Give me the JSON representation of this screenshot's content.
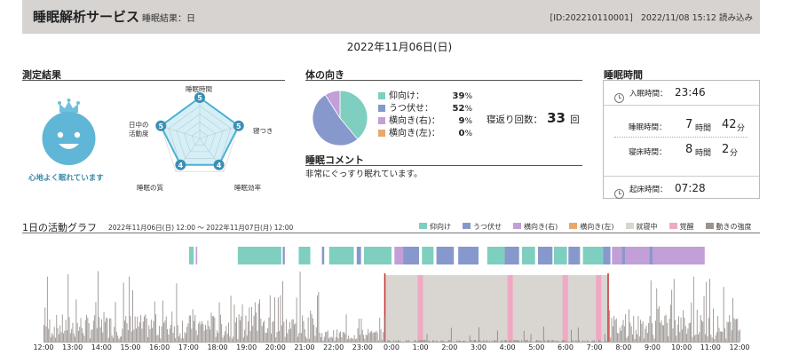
{
  "header": {
    "title": "睡眠解析サービス",
    "result_label": "睡眠結果：日",
    "id_text": "[ID:202210110001]",
    "loaded_text": "2022/11/08 15:12 読み込み"
  },
  "date_title": "2022年11月06日(日)",
  "measurement": {
    "title": "測定結果",
    "mascot_text": "心地よく眠れています",
    "radar": [
      {
        "label": "睡眠時間",
        "score": 5
      },
      {
        "label": "寝つき",
        "score": 5
      },
      {
        "label": "睡眠効率",
        "score": 4
      },
      {
        "label": "睡眠の質",
        "score": 4
      },
      {
        "label": "日中の活動度",
        "label_lines": [
          "日中の",
          "活動度"
        ],
        "score": 5
      }
    ],
    "radar_max": 5
  },
  "posture": {
    "title": "体の向き",
    "items": [
      {
        "label": "仰向け：",
        "value": 39,
        "color": "#7ecfbf"
      },
      {
        "label": "うつ伏せ：",
        "value": 52,
        "color": "#8798cc"
      },
      {
        "label": "横向き(右)：",
        "value": 9,
        "color": "#c39fd8"
      },
      {
        "label": "横向き(左)：",
        "value": 0,
        "color": "#e8a86a"
      }
    ],
    "pct_unit": "%",
    "roll_label": "寝返り回数：",
    "roll_value": "33",
    "roll_unit": "回"
  },
  "comment": {
    "title": "睡眠コメント",
    "text": "非常にぐっすり眠れています。"
  },
  "sleep_time": {
    "title": "睡眠時間",
    "bed_in_label": "入眠時間：",
    "bed_in_value": "23:46",
    "sleep_label": "睡眠時間：",
    "sleep_hours": "7",
    "sleep_h_unit": "時間",
    "sleep_minutes": "42",
    "sleep_m_unit": "分",
    "inbed_label": "寝床時間：",
    "inbed_hours": "8",
    "inbed_h_unit": "時間",
    "inbed_minutes": "2",
    "inbed_m_unit": "分",
    "wake_label": "起床時間：",
    "wake_value": "07:28"
  },
  "activity": {
    "title": "1日の活動グラフ",
    "range": "2022年11月06日(日) 12:00 ～ 2022年11月07日(月) 12:00",
    "legend": [
      {
        "label": "仰向け",
        "color": "#7ecfbf"
      },
      {
        "label": "うつ伏せ",
        "color": "#8798cc"
      },
      {
        "label": "横向き(右)",
        "color": "#c39fd8"
      },
      {
        "label": "横向き(左)",
        "color": "#e8a86a"
      },
      {
        "label": "就寝中",
        "color": "#d9d5d1"
      },
      {
        "label": "覚醒",
        "color": "#f0a8c4"
      },
      {
        "label": "動きの強度",
        "color": "#9a9491"
      }
    ],
    "ticks": [
      "12:00",
      "13:00",
      "14:00",
      "15:00",
      "16:00",
      "17:00",
      "18:00",
      "19:00",
      "20:00",
      "21:00",
      "22:00",
      "23:00",
      "0:00",
      "1:00",
      "2:00",
      "3:00",
      "4:00",
      "5:00",
      "6:00",
      "7:00",
      "8:00",
      "9:00",
      "10:00",
      "11:00",
      "12:00"
    ],
    "sleep_start_hour": 11.77,
    "sleep_end_hour": 19.47,
    "awake_hours": [
      12.9,
      16.0,
      17.9,
      19.05
    ],
    "posture_segments": [
      {
        "start": 5.02,
        "end": 5.18,
        "pos": 0
      },
      {
        "start": 5.25,
        "end": 5.3,
        "pos": 2
      },
      {
        "start": 6.7,
        "end": 8.2,
        "pos": 0
      },
      {
        "start": 8.25,
        "end": 8.32,
        "pos": 1
      },
      {
        "start": 8.8,
        "end": 9.2,
        "pos": 0
      },
      {
        "start": 9.6,
        "end": 9.68,
        "pos": 1
      },
      {
        "start": 9.85,
        "end": 10.7,
        "pos": 0
      },
      {
        "start": 10.8,
        "end": 10.95,
        "pos": 1
      },
      {
        "start": 11.05,
        "end": 12.0,
        "pos": 0
      },
      {
        "start": 12.1,
        "end": 12.4,
        "pos": 2
      },
      {
        "start": 12.4,
        "end": 12.95,
        "pos": 1
      },
      {
        "start": 13.05,
        "end": 13.45,
        "pos": 0
      },
      {
        "start": 13.55,
        "end": 14.15,
        "pos": 1
      },
      {
        "start": 14.3,
        "end": 15.0,
        "pos": 1
      },
      {
        "start": 15.3,
        "end": 15.9,
        "pos": 0
      },
      {
        "start": 15.9,
        "end": 16.4,
        "pos": 1
      },
      {
        "start": 16.5,
        "end": 16.95,
        "pos": 0
      },
      {
        "start": 17.05,
        "end": 17.55,
        "pos": 1
      },
      {
        "start": 17.6,
        "end": 18.05,
        "pos": 0
      },
      {
        "start": 18.1,
        "end": 18.5,
        "pos": 1
      },
      {
        "start": 18.6,
        "end": 19.3,
        "pos": 0
      },
      {
        "start": 19.3,
        "end": 19.55,
        "pos": 1
      },
      {
        "start": 19.6,
        "end": 22.8,
        "pos": 2
      },
      {
        "start": 19.95,
        "end": 20.05,
        "pos": 1
      },
      {
        "start": 20.9,
        "end": 21.0,
        "pos": 1
      }
    ]
  }
}
